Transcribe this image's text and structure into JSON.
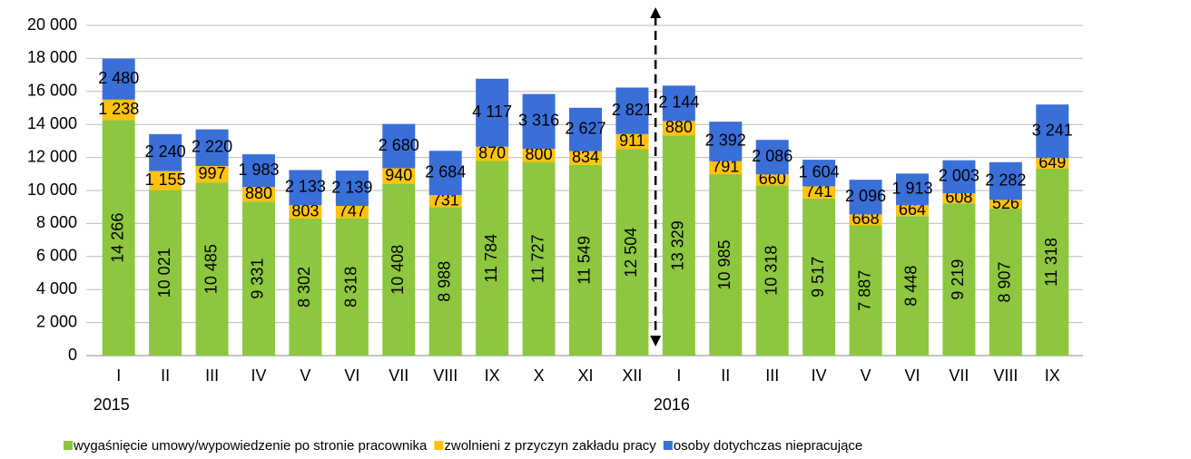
{
  "chart_data": {
    "type": "stacked_bar",
    "categories": [
      "I",
      "II",
      "III",
      "IV",
      "V",
      "VI",
      "VII",
      "VIII",
      "IX",
      "X",
      "XI",
      "XII",
      "I",
      "II",
      "III",
      "IV",
      "V",
      "VI",
      "VII",
      "VIII",
      "IX"
    ],
    "x_group_labels": [
      "2015",
      null,
      null,
      null,
      null,
      null,
      null,
      null,
      null,
      null,
      null,
      null,
      "2016",
      null,
      null,
      null,
      null,
      null,
      null,
      null,
      null
    ],
    "series": [
      {
        "name": "wygaśnięcie umowy/wypowiedzenie po stronie pracownika",
        "color": "#8dc63f",
        "values": [
          14266,
          10021,
          10485,
          9331,
          8302,
          8318,
          10408,
          8988,
          11784,
          11727,
          11549,
          12504,
          13329,
          10985,
          10318,
          9517,
          7887,
          8448,
          9219,
          8907,
          11318
        ],
        "value_labels": [
          "14 266",
          "10 021",
          "10 485",
          "9 331",
          "8 302",
          "8 318",
          "10 408",
          "8 988",
          "11 784",
          "11 727",
          "11 549",
          "12 504",
          "13 329",
          "10 985",
          "10 318",
          "9 517",
          "7 887",
          "8 448",
          "9 219",
          "8 907",
          "11 318"
        ]
      },
      {
        "name": "zwolnieni z przyczyn zakładu pracy",
        "color": "#ffc20e",
        "values": [
          1238,
          1155,
          997,
          880,
          803,
          747,
          940,
          731,
          870,
          800,
          834,
          911,
          880,
          791,
          660,
          741,
          668,
          664,
          608,
          526,
          649
        ],
        "value_labels": [
          "1 238",
          "1 155",
          "997",
          "880",
          "803",
          "747",
          "940",
          "731",
          "870",
          "800",
          "834",
          "911",
          "880",
          "791",
          "660",
          "741",
          "668",
          "664",
          "608",
          "526",
          "649"
        ]
      },
      {
        "name": "osoby dotychczas niepracujące",
        "color": "#3a6fd8",
        "values": [
          2480,
          2240,
          2220,
          1983,
          2133,
          2139,
          2680,
          2684,
          4117,
          3316,
          2627,
          2821,
          2144,
          2392,
          2086,
          1604,
          2096,
          1913,
          2003,
          2282,
          3241
        ],
        "value_labels": [
          "2 480",
          "2 240",
          "2 220",
          "1 983",
          "2 133",
          "2 139",
          "2 680",
          "2 684",
          "4 117",
          "3 316",
          "2 627",
          "2 821",
          "2 144",
          "2 392",
          "2 086",
          "1 604",
          "2 096",
          "1 913",
          "2 003",
          "2 282",
          "3 241"
        ]
      }
    ],
    "ylim": [
      0,
      20000
    ],
    "yticks": [
      0,
      {
        "value": 2000,
        "label": "2 000"
      },
      {
        "value": 4000,
        "label": "4 000"
      },
      {
        "value": 6000,
        "label": "6 000"
      },
      {
        "value": 8000,
        "label": "8 000"
      },
      {
        "value": 10000,
        "label": "10 000"
      },
      {
        "value": 12000,
        "label": "12 000"
      },
      {
        "value": 14000,
        "label": "14 000"
      },
      {
        "value": 16000,
        "label": "16 000"
      },
      {
        "value": 18000,
        "label": "18 000"
      },
      {
        "value": 20000,
        "label": "20 000"
      }
    ],
    "grid": true,
    "legend": "bottom"
  }
}
